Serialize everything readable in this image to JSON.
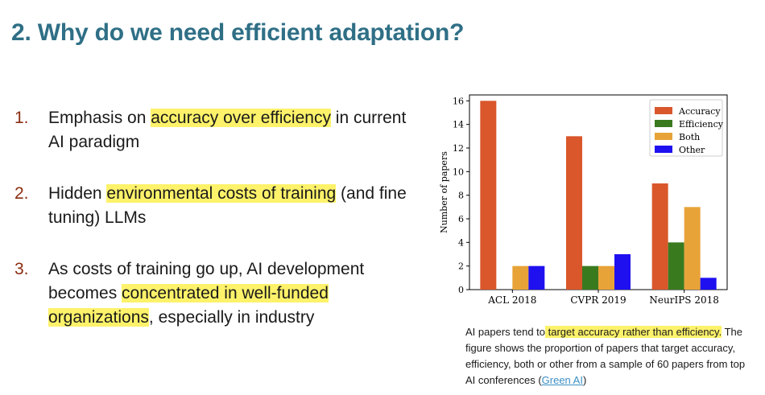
{
  "slide": {
    "title": "2. Why do we need efficient adaptation?",
    "points": [
      {
        "num": "1.",
        "before": "Emphasis on ",
        "highlight": "accuracy over efficiency",
        "after": " in current AI paradigm"
      },
      {
        "num": "2.",
        "before": "Hidden ",
        "highlight": "environmental costs of training",
        "after": " (and fine tuning) LLMs"
      },
      {
        "num": "3.",
        "before": "As costs of training go up, AI development becomes ",
        "highlight": "concentrated in well-funded organizations",
        "after": ", especially in industry"
      }
    ],
    "caption": {
      "before": "AI papers tend to",
      "highlight": " target accuracy rather than efficiency.",
      "after": " The figure shows the proportion of papers that target accuracy, efficiency, both or other from a sample of 60 papers from top AI conferences (",
      "link": "Green AI",
      "end": ")"
    }
  },
  "chart_data": {
    "type": "bar",
    "categories": [
      "ACL 2018",
      "CVPR 2019",
      "NeurIPS 2018"
    ],
    "series": [
      {
        "name": "Accuracy",
        "values": [
          16,
          13,
          9
        ],
        "color": "#d9572b"
      },
      {
        "name": "Efficiency",
        "values": [
          0,
          2,
          4
        ],
        "color": "#3a7a1f"
      },
      {
        "name": "Both",
        "values": [
          2,
          2,
          7
        ],
        "color": "#e8a338"
      },
      {
        "name": "Other",
        "values": [
          2,
          3,
          1
        ],
        "color": "#1f10f0"
      }
    ],
    "ylabel": "Number of papers",
    "xlabel": "",
    "ylim": [
      0,
      16.5
    ],
    "yticks": [
      0,
      2,
      4,
      6,
      8,
      10,
      12,
      14,
      16
    ],
    "legend": "top-right",
    "grid": false
  }
}
